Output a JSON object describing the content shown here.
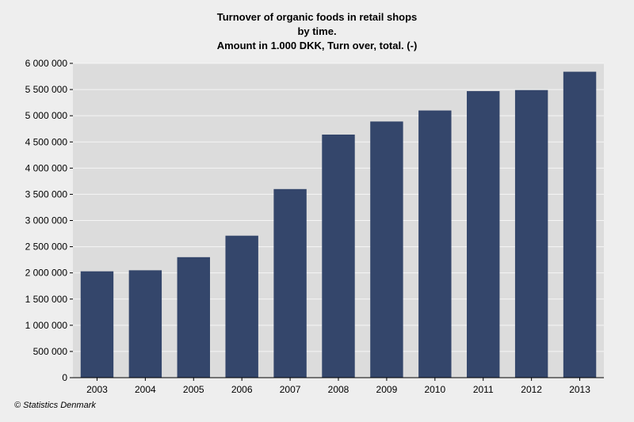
{
  "chart_data": {
    "type": "bar",
    "title": [
      "Turnover of organic foods in retail shops",
      "by time.",
      "Amount in 1.000 DKK, Turn over, total. (-)"
    ],
    "categories": [
      "2003",
      "2004",
      "2005",
      "2006",
      "2007",
      "2008",
      "2009",
      "2010",
      "2011",
      "2012",
      "2013"
    ],
    "values": [
      2030000,
      2050000,
      2300000,
      2710000,
      3600000,
      4640000,
      4890000,
      5100000,
      5470000,
      5490000,
      5840000
    ],
    "ylim": [
      0,
      6000000
    ],
    "yticks": [
      0,
      500000,
      1000000,
      1500000,
      2000000,
      2500000,
      3000000,
      3500000,
      4000000,
      4500000,
      5000000,
      5500000,
      6000000
    ],
    "ytick_labels": [
      "0",
      "500 000",
      "1 000 000",
      "1 500 000",
      "2 000 000",
      "2 500 000",
      "3 000 000",
      "3 500 000",
      "4 000 000",
      "4 500 000",
      "5 000 000",
      "5 500 000",
      "6 000 000"
    ],
    "xlabel": "",
    "ylabel": "",
    "grid": true,
    "colors": {
      "bar": "#34466b",
      "plot_background": "#dcdcdc",
      "page_background": "#eeeeee",
      "grid": "#f5f5f5"
    }
  },
  "credit": "© Statistics Denmark"
}
